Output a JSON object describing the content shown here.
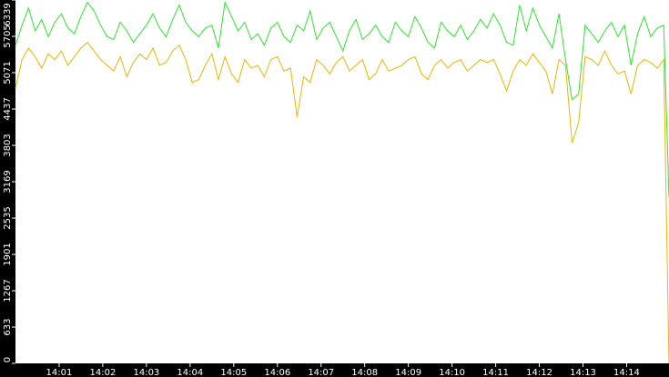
{
  "chart_data": {
    "type": "line",
    "x": [
      0,
      0.15,
      0.3,
      0.45,
      0.6,
      0.75,
      0.9,
      1.05,
      1.2,
      1.35,
      1.5,
      1.65,
      1.8,
      1.95,
      2.1,
      2.25,
      2.4,
      2.55,
      2.7,
      2.85,
      3,
      3.15,
      3.3,
      3.45,
      3.6,
      3.75,
      3.9,
      4.05,
      4.2,
      4.35,
      4.5,
      4.65,
      4.8,
      4.95,
      5.1,
      5.25,
      5.4,
      5.55,
      5.7,
      5.85,
      6,
      6.15,
      6.3,
      6.45,
      6.6,
      6.75,
      6.9,
      7.05,
      7.2,
      7.35,
      7.5,
      7.65,
      7.8,
      7.95,
      8.1,
      8.25,
      8.4,
      8.55,
      8.7,
      8.85,
      9,
      9.15,
      9.3,
      9.45,
      9.6,
      9.75,
      9.9,
      10.05,
      10.2,
      10.35,
      10.5,
      10.65,
      10.8,
      10.95,
      11.1,
      11.25,
      11.4,
      11.55,
      11.7,
      11.85,
      12,
      12.15,
      12.3,
      12.45,
      12.6,
      12.75,
      12.9,
      13.05,
      13.2,
      13.35,
      13.5,
      13.65,
      13.8,
      13.95,
      14.1,
      14.25,
      14.4,
      14.55,
      14.7,
      14.85,
      14.97
    ],
    "series": [
      {
        "color": "#2ee62e",
        "values": [
          5550,
          5900,
          6200,
          5800,
          6000,
          5700,
          5950,
          6100,
          5850,
          5750,
          6050,
          6300,
          6150,
          5900,
          5700,
          5650,
          5950,
          5800,
          5600,
          5750,
          5900,
          6100,
          5850,
          5700,
          6000,
          6250,
          5950,
          5800,
          5700,
          5850,
          5900,
          5500,
          6300,
          6050,
          5800,
          5950,
          5650,
          5750,
          5550,
          5850,
          5950,
          5700,
          5600,
          5900,
          5800,
          6150,
          5650,
          5850,
          5950,
          5700,
          5450,
          5800,
          6000,
          5650,
          5750,
          5900,
          5700,
          5600,
          5950,
          5800,
          5700,
          6050,
          5850,
          5600,
          5500,
          5950,
          5800,
          5700,
          5900,
          5650,
          5800,
          6000,
          5850,
          6100,
          5900,
          5600,
          5550,
          6250,
          5800,
          6200,
          5900,
          5700,
          5500,
          6100,
          5300,
          4600,
          4700,
          5900,
          5750,
          5600,
          5800,
          5950,
          5700,
          5900,
          5200,
          5750,
          6050,
          5700,
          5850,
          5900,
          2900
        ]
      },
      {
        "color": "#f0b400",
        "values": [
          4800,
          5300,
          5500,
          5350,
          5150,
          5400,
          5300,
          5450,
          5200,
          5350,
          5500,
          5600,
          5450,
          5300,
          5200,
          5100,
          5350,
          5000,
          5250,
          5400,
          5300,
          5500,
          5200,
          5250,
          5450,
          5550,
          5300,
          4900,
          4950,
          5200,
          5400,
          4950,
          5350,
          5050,
          4900,
          5300,
          5150,
          5200,
          5000,
          5300,
          5350,
          5100,
          5150,
          4300,
          5000,
          4900,
          5300,
          5200,
          5050,
          5250,
          5350,
          5100,
          5200,
          5300,
          4950,
          5050,
          5300,
          5100,
          5150,
          5200,
          5300,
          5350,
          5050,
          4950,
          5200,
          5300,
          5150,
          5250,
          5300,
          5100,
          5200,
          5300,
          5250,
          5300,
          5050,
          4750,
          5100,
          5300,
          5200,
          5400,
          5250,
          5100,
          4700,
          5300,
          5200,
          3850,
          4200,
          5350,
          5300,
          5200,
          5450,
          5200,
          5050,
          5100,
          4700,
          5200,
          5300,
          5250,
          5150,
          5300,
          0
        ]
      }
    ],
    "xlim": [
      0,
      14.97
    ],
    "xticks": [
      {
        "value": 1,
        "label": "14:01"
      },
      {
        "value": 2,
        "label": "14:02"
      },
      {
        "value": 3,
        "label": "14:03"
      },
      {
        "value": 4,
        "label": "14:04"
      },
      {
        "value": 5,
        "label": "14:05"
      },
      {
        "value": 6,
        "label": "14:06"
      },
      {
        "value": 7,
        "label": "14:07"
      },
      {
        "value": 8,
        "label": "14:08"
      },
      {
        "value": 9,
        "label": "14:09"
      },
      {
        "value": 10,
        "label": "14:10"
      },
      {
        "value": 11,
        "label": "14:11"
      },
      {
        "value": 12,
        "label": "14:12"
      },
      {
        "value": 13,
        "label": "14:13"
      },
      {
        "value": 14,
        "label": "14:14"
      }
    ],
    "ylim": [
      0,
      6339
    ],
    "yticks": [
      0,
      633,
      1267,
      1901,
      2535,
      3169,
      3803,
      4437,
      5071,
      5705,
      6339
    ]
  }
}
